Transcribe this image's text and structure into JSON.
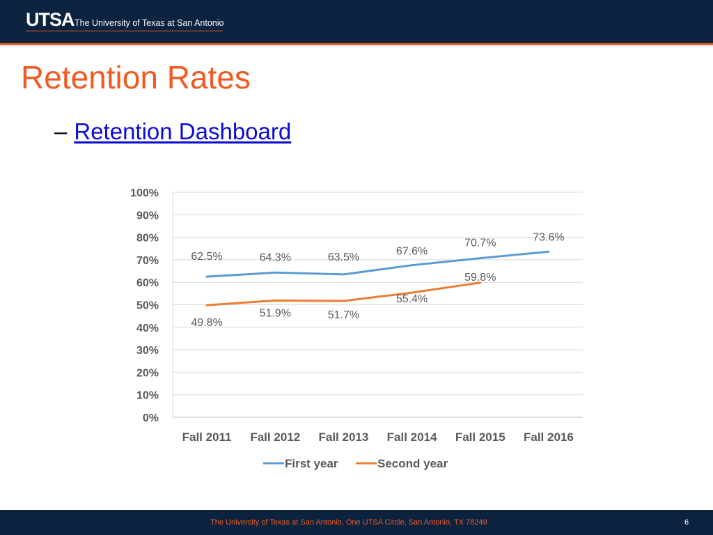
{
  "header": {
    "logo_text": "UTSA",
    "tagline": "The University of Texas at San Antonio"
  },
  "slide": {
    "title": "Retention Rates",
    "bullet_dash": "–",
    "link_text": "Retention Dashboard"
  },
  "footer": {
    "text": "The University of Texas at San Antonio, One UTSA Circle, San Antonio, TX 78249",
    "page_number": "6"
  },
  "colors": {
    "navy": "#0c2340",
    "orange": "#f15a22",
    "series_first": "#5b9bd5",
    "series_second": "#ed7d31"
  },
  "chart_data": {
    "type": "line",
    "categories": [
      "Fall 2011",
      "Fall 2012",
      "Fall 2013",
      "Fall 2014",
      "Fall 2015",
      "Fall 2016"
    ],
    "series": [
      {
        "name": "First year",
        "values": [
          62.5,
          64.3,
          63.5,
          67.6,
          70.7,
          73.6
        ],
        "labels": [
          "62.5%",
          "64.3%",
          "63.5%",
          "67.6%",
          "70.7%",
          "73.6%"
        ]
      },
      {
        "name": "Second year",
        "values": [
          49.8,
          51.9,
          51.7,
          55.4,
          59.8,
          null
        ],
        "labels": [
          "49.8%",
          "51.9%",
          "51.7%",
          "55.4%",
          "59.8%",
          null
        ]
      }
    ],
    "yticks": [
      "0%",
      "10%",
      "20%",
      "30%",
      "40%",
      "50%",
      "60%",
      "70%",
      "80%",
      "90%",
      "100%"
    ],
    "ylim": [
      0,
      100
    ],
    "grid": true,
    "legend": "bottom"
  }
}
